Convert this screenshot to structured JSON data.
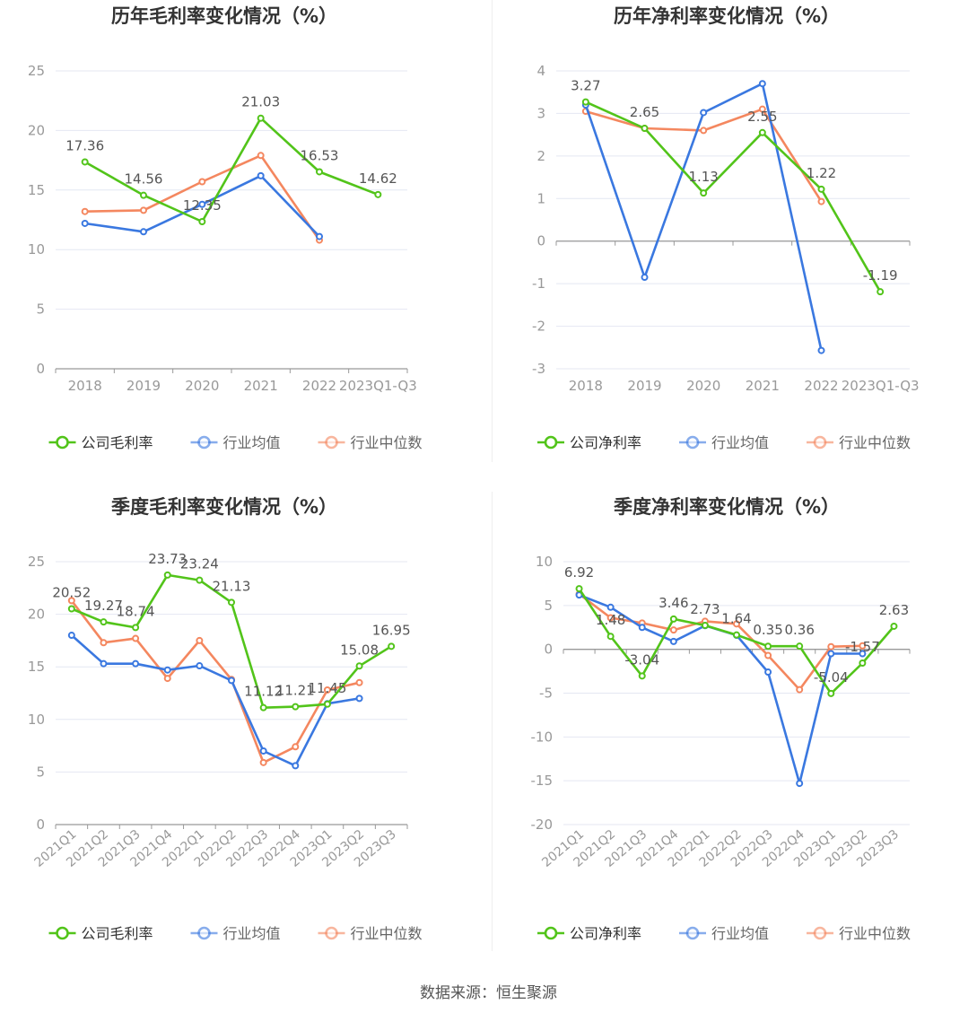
{
  "colors": {
    "company": "#52c41a",
    "avg": "#3a78e0",
    "median": "#f4875f",
    "grid": "#e4e7f2",
    "axis": "#999999",
    "label": "#555555",
    "title": "#333333"
  },
  "legend": {
    "company_gross": "公司毛利率",
    "company_net": "公司净利率",
    "avg": "行业均值",
    "median": "行业中位数"
  },
  "source": "数据来源：恒生聚源",
  "chart_data": [
    {
      "type": "line",
      "title": "历年毛利率变化情况（%）",
      "categories": [
        "2018",
        "2019",
        "2020",
        "2021",
        "2022",
        "2023Q1-Q3"
      ],
      "ylim": [
        0,
        25
      ],
      "yticks": [
        0,
        5,
        10,
        15,
        20,
        25
      ],
      "grid": true,
      "legend_position": "bottom",
      "series": [
        {
          "name": "公司毛利率",
          "key": "company",
          "values": [
            17.36,
            14.56,
            12.35,
            21.03,
            16.53,
            14.62
          ],
          "labels": [
            "17.36",
            "14.56",
            "12.35",
            "21.03",
            "16.53",
            "14.62"
          ]
        },
        {
          "name": "行业均值",
          "key": "avg",
          "values": [
            12.2,
            11.5,
            13.8,
            16.2,
            11.1,
            null
          ]
        },
        {
          "name": "行业中位数",
          "key": "median",
          "values": [
            13.2,
            13.3,
            15.7,
            17.9,
            10.8,
            null
          ]
        }
      ]
    },
    {
      "type": "line",
      "title": "历年净利率变化情况（%）",
      "categories": [
        "2018",
        "2019",
        "2020",
        "2021",
        "2022",
        "2023Q1-Q3"
      ],
      "ylim": [
        -3,
        4
      ],
      "yticks": [
        -3,
        -2,
        -1,
        0,
        1,
        2,
        3,
        4
      ],
      "grid": true,
      "legend_position": "bottom",
      "series": [
        {
          "name": "公司净利率",
          "key": "company",
          "values": [
            3.27,
            2.65,
            1.13,
            2.55,
            1.22,
            -1.19
          ],
          "labels": [
            "3.27",
            "2.65",
            "1.13",
            "2.55",
            "1.22",
            "-1.19"
          ]
        },
        {
          "name": "行业均值",
          "key": "avg",
          "values": [
            3.2,
            -0.85,
            3.02,
            3.7,
            -2.57,
            null
          ]
        },
        {
          "name": "行业中位数",
          "key": "median",
          "values": [
            3.05,
            2.65,
            2.6,
            3.1,
            0.93,
            null
          ]
        }
      ]
    },
    {
      "type": "line",
      "title": "季度毛利率变化情况（%）",
      "categories": [
        "2021Q1",
        "2021Q2",
        "2021Q3",
        "2021Q4",
        "2022Q1",
        "2022Q2",
        "2022Q3",
        "2022Q4",
        "2023Q1",
        "2023Q2",
        "2023Q3"
      ],
      "ylim": [
        0,
        25
      ],
      "yticks": [
        0,
        5,
        10,
        15,
        20,
        25
      ],
      "grid": true,
      "legend_position": "bottom",
      "series": [
        {
          "name": "公司毛利率",
          "key": "company",
          "values": [
            20.52,
            19.27,
            18.74,
            23.73,
            23.24,
            21.13,
            11.12,
            11.21,
            11.45,
            15.08,
            16.95
          ],
          "labels": [
            "20.52",
            "19.27",
            "18.74",
            "23.73",
            "23.24",
            "21.13",
            "11.12",
            "11.21",
            "11.45",
            "15.08",
            "16.95"
          ]
        },
        {
          "name": "行业均值",
          "key": "avg",
          "values": [
            18.0,
            15.3,
            15.3,
            14.7,
            15.1,
            13.7,
            7.0,
            5.6,
            11.5,
            12.0,
            null
          ]
        },
        {
          "name": "行业中位数",
          "key": "median",
          "values": [
            21.3,
            17.3,
            17.7,
            13.9,
            17.5,
            13.8,
            5.9,
            7.4,
            12.8,
            13.5,
            null
          ]
        }
      ]
    },
    {
      "type": "line",
      "title": "季度净利率变化情况（%）",
      "categories": [
        "2021Q1",
        "2021Q2",
        "2021Q3",
        "2021Q4",
        "2022Q1",
        "2022Q2",
        "2022Q3",
        "2022Q4",
        "2023Q1",
        "2023Q2",
        "2023Q3"
      ],
      "ylim": [
        -20,
        10
      ],
      "yticks": [
        -20,
        -15,
        -10,
        -5,
        0,
        5,
        10
      ],
      "grid": true,
      "legend_position": "bottom",
      "series": [
        {
          "name": "公司净利率",
          "key": "company",
          "values": [
            6.92,
            1.48,
            -3.04,
            3.46,
            2.73,
            1.64,
            0.35,
            0.36,
            -5.04,
            -1.57,
            2.63
          ],
          "labels": [
            "6.92",
            "1.48",
            "-3.04",
            "3.46",
            "2.73",
            "1.64",
            "0.35",
            "0.36",
            "-5.04",
            "-1.57",
            "2.63"
          ]
        },
        {
          "name": "行业均值",
          "key": "avg",
          "values": [
            6.2,
            4.8,
            2.5,
            0.9,
            2.7,
            1.6,
            -2.6,
            -15.3,
            -0.5,
            -0.5,
            null
          ]
        },
        {
          "name": "行业中位数",
          "key": "median",
          "values": [
            6.3,
            3.6,
            3.0,
            2.2,
            3.2,
            2.9,
            -0.7,
            -4.6,
            0.3,
            0.4,
            null
          ]
        }
      ]
    }
  ]
}
